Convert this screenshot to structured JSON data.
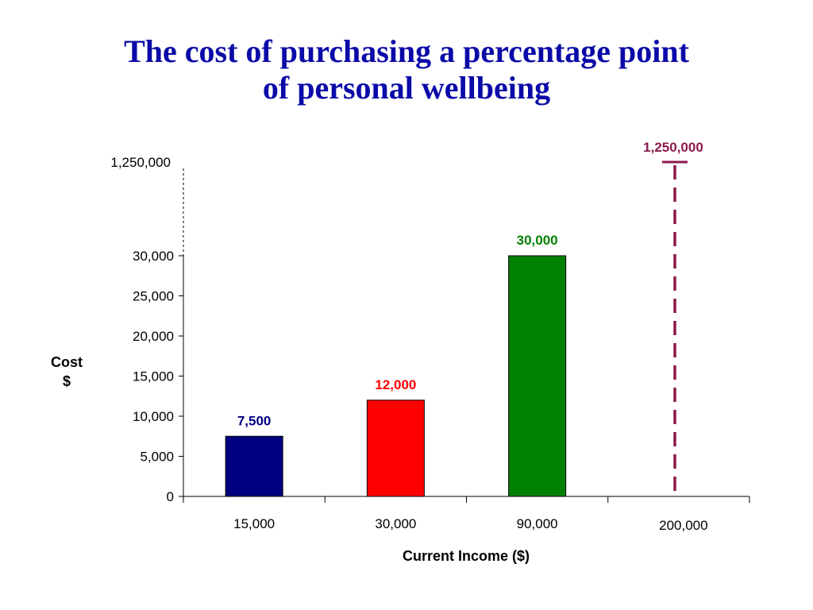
{
  "title_lines": [
    "The cost of purchasing a percentage point",
    "of personal wellbeing"
  ],
  "chart_data": {
    "type": "bar",
    "title": "The cost of purchasing a percentage point of personal wellbeing",
    "xlabel": "Current Income ($)",
    "ylabel_lines": [
      "Cost",
      "$"
    ],
    "ylabel": "Cost $",
    "categories": [
      "15,000",
      "30,000",
      "90,000",
      "200,000"
    ],
    "values": [
      7500,
      12000,
      30000,
      1250000
    ],
    "value_labels": [
      "7,500",
      "12,000",
      "30,000",
      "1,250,000"
    ],
    "bar_colors": [
      "#000080",
      "#ff0000",
      "#008000",
      "#8b1a4a"
    ],
    "last_bar_style": "dashed line (axis break)",
    "ylim": [
      0,
      30000
    ],
    "y_ticks": [
      0,
      5000,
      10000,
      15000,
      20000,
      25000,
      30000
    ],
    "y_tick_labels": [
      "0",
      "5,000",
      "10,000",
      "15,000",
      "20,000",
      "25,000",
      "30,000"
    ],
    "y_break_tick_label": "1,250,000",
    "grid": false
  }
}
